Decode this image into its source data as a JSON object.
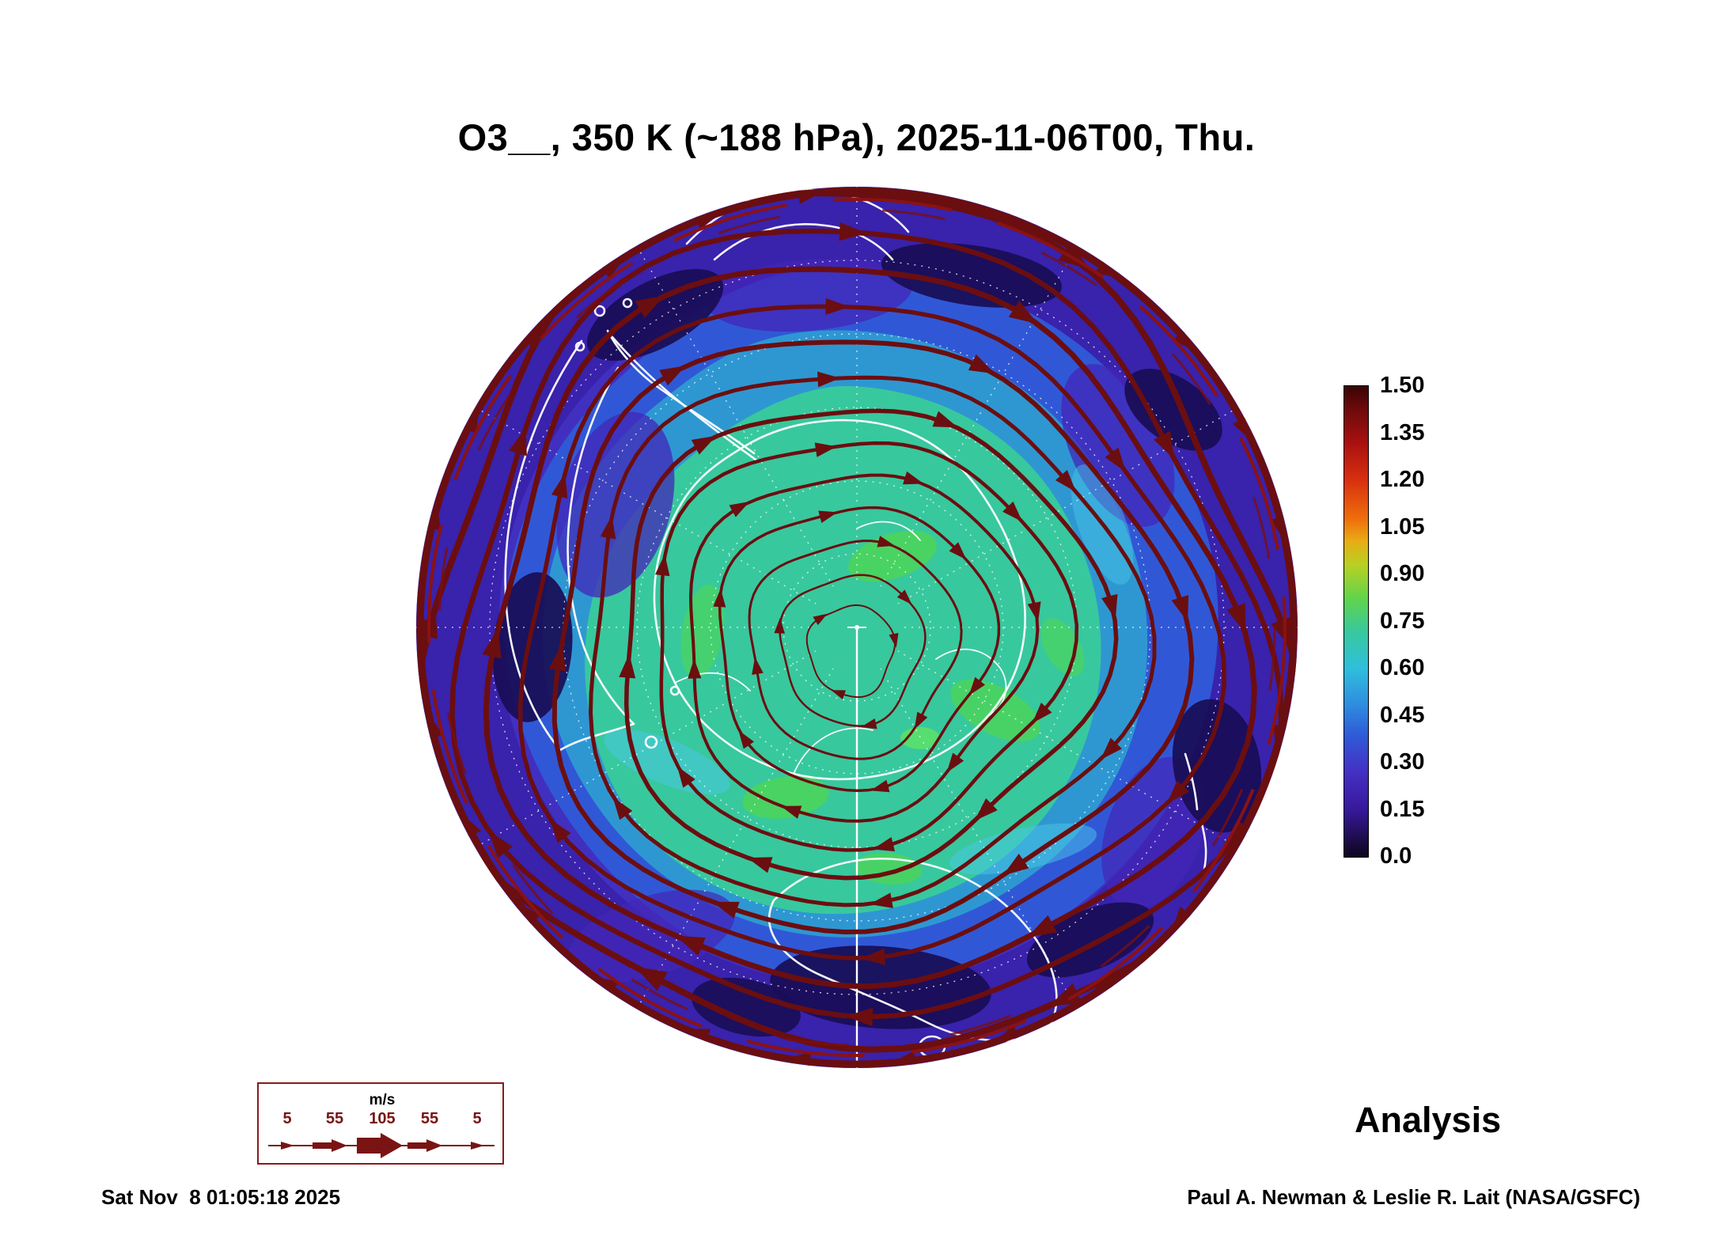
{
  "title": "O3__, 350 K (~188 hPa), 2025-11-06T00, Thu.",
  "colorbar": {
    "ticks": [
      "1.50",
      "1.35",
      "1.20",
      "1.05",
      "0.90",
      "0.75",
      "0.60",
      "0.45",
      "0.30",
      "0.15",
      "0.0"
    ]
  },
  "wind_legend": {
    "units": "m/s",
    "speeds": [
      "5",
      "55",
      "105",
      "55",
      "5"
    ]
  },
  "annotations": {
    "analysis_label": "Analysis",
    "credit": "Paul A. Newman & Leslie R. Lait (NASA/GSFC)",
    "generated_timestamp": "Sat Nov  8 01:05:18 2025"
  },
  "chart_data": {
    "type": "heatmap",
    "title": "O3__, 350 K (~188 hPa), 2025-11-06T00, Thu.",
    "projection": "south polar stereographic (Antarctica centered)",
    "field": "O3 on the 350 K isentropic surface (~188 hPa)",
    "valid_time": "2025-11-06T00",
    "product": "Analysis",
    "colorbar": {
      "min": 0.0,
      "max": 1.5,
      "tick_step": 0.15,
      "tick_values": [
        1.5,
        1.35,
        1.2,
        1.05,
        0.9,
        0.75,
        0.6,
        0.45,
        0.3,
        0.15,
        0.0
      ],
      "colors_top_to_bottom": [
        "#3a0404",
        "#a81010",
        "#ef6c0c",
        "#b8d024",
        "#62d44a",
        "#38c89c",
        "#2fbfdc",
        "#2f5cd8",
        "#4430c4",
        "#37189a",
        "#120828"
      ]
    },
    "overlays": [
      "wind streamlines (dark red with arrowheads)",
      "coastlines (white)",
      "latitude/longitude graticule (white dotted)",
      "solid white prime-meridian line from pole to map edge"
    ],
    "qualitative_values": {
      "polar_vortex_core": "0.45-0.75 (teal/green over Antarctica)",
      "midlatitude_ring": "0.0-0.35 (purple/blue)",
      "subtropical_edge_jet": "1.2-1.5 (dark red rim at map edge)"
    },
    "wind_legend_speeds_ms": [
      5,
      55,
      105,
      55,
      5
    ],
    "streamlines": {
      "color": "#6b0e10",
      "center": [
        560,
        560
      ],
      "vortex_center": [
        552,
        592
      ],
      "rim_chevrons": 26,
      "loops": [
        {
          "r": 0.97,
          "w": 8
        },
        {
          "r": 0.9,
          "w": 6.5
        },
        {
          "r": 0.83,
          "w": 7
        },
        {
          "r": 0.76,
          "w": 5.5
        },
        {
          "r": 0.69,
          "w": 6
        },
        {
          "r": 0.615,
          "w": 5
        },
        {
          "r": 0.54,
          "w": 5.5
        },
        {
          "r": 0.465,
          "w": 4.5
        },
        {
          "r": 0.39,
          "w": 4
        },
        {
          "r": 0.315,
          "w": 3.5
        },
        {
          "r": 0.24,
          "w": 3
        },
        {
          "r": 0.165,
          "w": 2.5
        },
        {
          "r": 0.1,
          "w": 2
        }
      ]
    }
  }
}
